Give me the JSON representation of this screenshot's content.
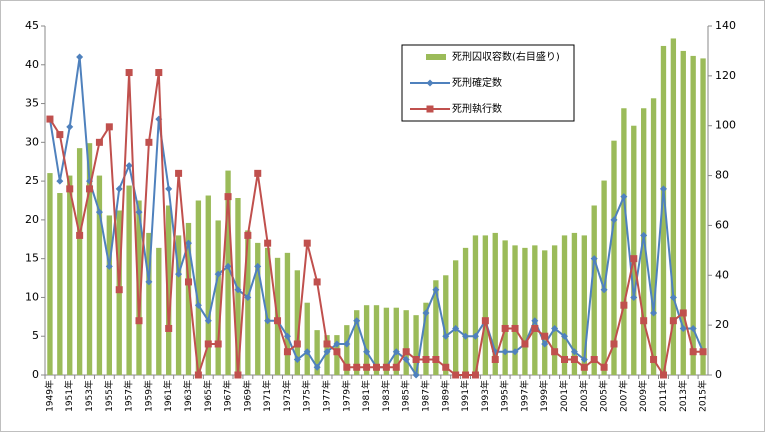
{
  "chart_data": {
    "type": "bar_line",
    "categories": [
      "1949年",
      null,
      "1951年",
      null,
      "1953年",
      null,
      "1955年",
      null,
      "1957年",
      null,
      "1959年",
      null,
      "1961年",
      null,
      "1963年",
      null,
      "1965年",
      null,
      "1967年",
      null,
      "1969年",
      null,
      "1971年",
      null,
      "1973年",
      null,
      "1975年",
      null,
      "1977年",
      null,
      "1979年",
      null,
      "1981年",
      null,
      "1983年",
      null,
      "1985年",
      null,
      "1987年",
      null,
      "1989年",
      null,
      "1991年",
      null,
      "1993年",
      null,
      "1995年",
      null,
      "1997年",
      null,
      "1999年",
      null,
      "2001年",
      null,
      "2003年",
      null,
      "2005年",
      null,
      "2007年",
      null,
      "2009年",
      null,
      "2011年",
      null,
      "2013年",
      null,
      "2015年"
    ],
    "series": [
      {
        "name": "死刑囚収容数(右目盛り)",
        "kind": "bar",
        "axis": "y2",
        "color": "#9bbb59",
        "values": [
          81,
          73,
          80,
          91,
          93,
          80,
          64,
          66,
          76,
          70,
          57,
          51,
          68,
          56,
          61,
          70,
          72,
          62,
          82,
          71,
          58,
          53,
          51,
          47,
          49,
          42,
          29,
          18,
          16,
          16,
          20,
          26,
          28,
          28,
          27,
          27,
          26,
          24,
          29,
          38,
          40,
          46,
          51,
          56,
          56,
          57,
          54,
          52,
          51,
          52,
          50,
          52,
          56,
          57,
          56,
          68,
          78,
          94,
          107,
          100,
          107,
          111,
          132,
          135,
          130,
          128,
          127
        ]
      },
      {
        "name": "死刑確定数",
        "kind": "line",
        "marker": "diamond",
        "color": "#4f81bd",
        "values": [
          33,
          25,
          32,
          41,
          25,
          21,
          14,
          24,
          27,
          21,
          12,
          33,
          24,
          13,
          17,
          9,
          7,
          13,
          14,
          11,
          10,
          14,
          7,
          7,
          5,
          2,
          3,
          1,
          3,
          4,
          4,
          7,
          3,
          1,
          1,
          3,
          2,
          0,
          8,
          11,
          5,
          6,
          5,
          5,
          7,
          3,
          3,
          3,
          4,
          7,
          4,
          6,
          5,
          3,
          2,
          15,
          11,
          20,
          23,
          10,
          18,
          8,
          24,
          10,
          6,
          6,
          3
        ]
      },
      {
        "name": "死刑執行数",
        "kind": "line",
        "marker": "square",
        "color": "#c0504d",
        "values": [
          33,
          31,
          24,
          18,
          24,
          30,
          32,
          11,
          39,
          7,
          30,
          39,
          6,
          26,
          12,
          0,
          4,
          4,
          23,
          0,
          18,
          26,
          17,
          7,
          3,
          4,
          17,
          12,
          4,
          3,
          1,
          1,
          1,
          1,
          1,
          1,
          3,
          2,
          2,
          2,
          1,
          0,
          0,
          0,
          7,
          2,
          6,
          6,
          4,
          6,
          5,
          3,
          2,
          2,
          1,
          2,
          1,
          4,
          9,
          15,
          7,
          2,
          0,
          7,
          8,
          3,
          3
        ]
      }
    ],
    "ylim": [
      0,
      45
    ],
    "yticks": [
      0,
      5,
      10,
      15,
      20,
      25,
      30,
      35,
      40,
      45
    ],
    "y2lim": [
      0,
      140
    ],
    "y2ticks": [
      0,
      20,
      40,
      60,
      80,
      100,
      120,
      140
    ],
    "grid": false,
    "legend": "top-right"
  }
}
